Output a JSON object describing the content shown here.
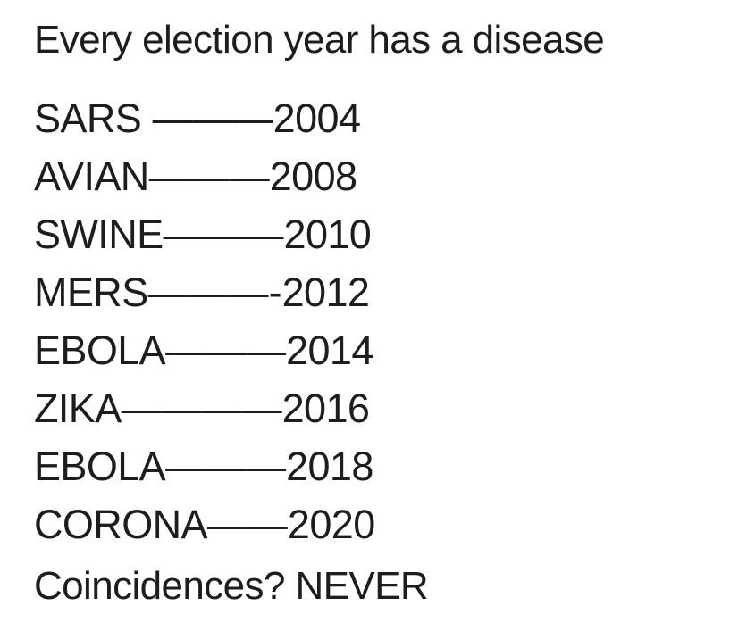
{
  "post": {
    "title": "Every election year has a disease",
    "items": [
      {
        "label": "SARS",
        "separator": " ———",
        "year": "2004"
      },
      {
        "label": "AVIAN",
        "separator": "———",
        "year": "2008"
      },
      {
        "label": "SWINE",
        "separator": "———",
        "year": "2010"
      },
      {
        "label": "MERS",
        "separator": "———-",
        "year": "2012"
      },
      {
        "label": "EBOLA",
        "separator": "———",
        "year": "2014"
      },
      {
        "label": "ZIKA",
        "separator": "————",
        "year": "2016"
      },
      {
        "label": "EBOLA",
        "separator": "———",
        "year": "2018"
      },
      {
        "label": "CORONA",
        "separator": "——",
        "year": "2020"
      }
    ],
    "footer": "Coincidences? NEVER",
    "colors": {
      "background": "#ffffff",
      "text": "#1d1d1f"
    }
  }
}
